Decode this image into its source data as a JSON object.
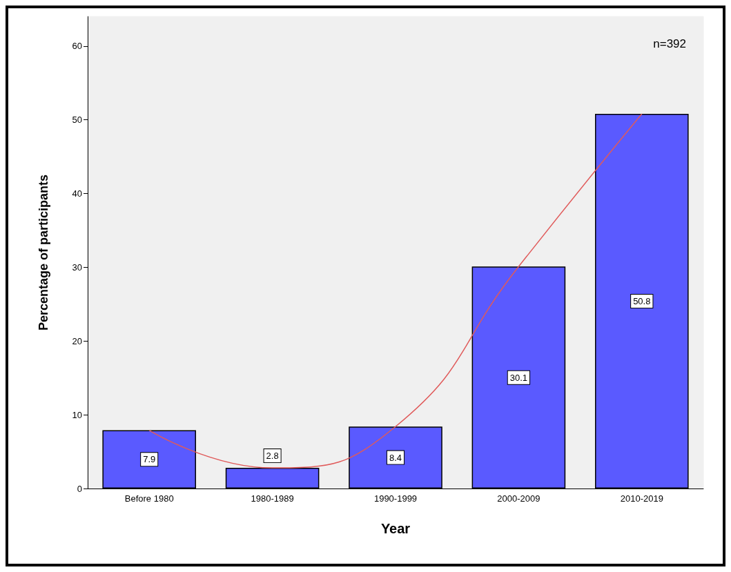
{
  "chart_data": {
    "type": "bar",
    "xlabel": "Year",
    "ylabel": "Percentage of participants",
    "categories": [
      "Before 1980",
      "1980-1989",
      "1990-1999",
      "2000-2009",
      "2010-2019"
    ],
    "series": [
      {
        "color": "#5a5aff",
        "values": [
          7.9,
          2.8,
          8.4,
          30.1,
          50.8
        ],
        "value_labels": [
          "7.9",
          "2.8",
          "8.4",
          "30.1",
          "50.8"
        ]
      },
      {
        "type": "line",
        "color": "#e05a5a",
        "values": [
          7.9,
          2.8,
          8.4,
          30.1,
          50.8
        ],
        "marker": "none"
      }
    ],
    "ylim": [
      0,
      64
    ],
    "yticks": [
      0,
      10,
      20,
      30,
      40,
      50,
      60
    ],
    "annotations": [
      "n=392"
    ]
  }
}
